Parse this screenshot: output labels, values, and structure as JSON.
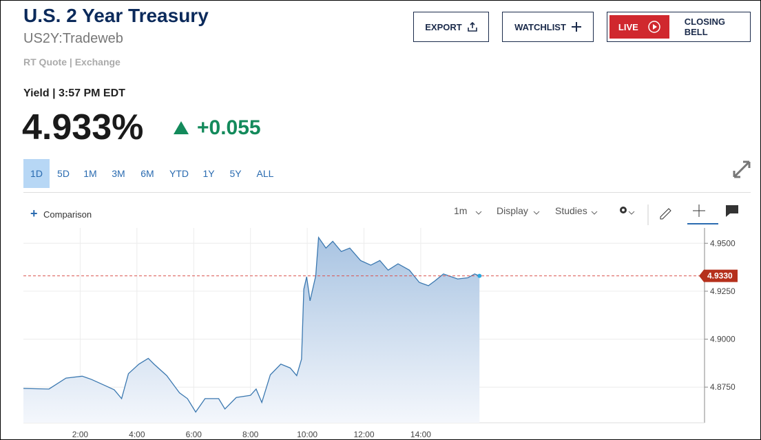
{
  "header": {
    "title": "U.S. 2 Year Treasury",
    "symbol": "US2Y:Tradeweb",
    "source": "RT Quote | Exchange",
    "time": "Yield | 3:57 PM EDT",
    "price": "4.933%",
    "change": "+0.055"
  },
  "buttons": {
    "export": "EXPORT",
    "watchlist": "WATCHLIST",
    "live": "LIVE",
    "closing_bell": "CLOSING BELL"
  },
  "ranges": [
    "1D",
    "5D",
    "1M",
    "3M",
    "6M",
    "YTD",
    "1Y",
    "5Y",
    "ALL"
  ],
  "toolbar": {
    "comparison": "Comparison",
    "interval": "1m",
    "display": "Display",
    "studies": "Studies"
  },
  "chart_data": {
    "type": "line",
    "color": "#3b78b0",
    "x": [
      0,
      0.9,
      1.5,
      2.07,
      2.4,
      2.85,
      3.2,
      3.46,
      3.7,
      4.07,
      4.4,
      4.6,
      5.05,
      5.5,
      5.78,
      6.07,
      6.4,
      6.88,
      7.1,
      7.5,
      8.0,
      8.2,
      8.4,
      8.7,
      9.07,
      9.4,
      9.63,
      9.8,
      9.88,
      9.98,
      10.1,
      10.3,
      10.4,
      10.66,
      10.9,
      11.2,
      11.5,
      11.88,
      12.24,
      12.56,
      12.85,
      13.2,
      13.6,
      13.95,
      14.27,
      14.5,
      14.8,
      15.3,
      15.66,
      15.9,
      16.07
    ],
    "y": [
      4.8743,
      4.874,
      4.8797,
      4.8807,
      4.879,
      4.876,
      4.8736,
      4.869,
      4.882,
      4.887,
      4.89,
      4.887,
      4.881,
      4.872,
      4.869,
      4.862,
      4.869,
      4.869,
      4.8636,
      4.8696,
      4.8707,
      4.874,
      4.867,
      4.8814,
      4.887,
      4.885,
      4.881,
      4.8896,
      4.926,
      4.9325,
      4.92,
      4.933,
      4.953,
      4.9475,
      4.951,
      4.9457,
      4.9475,
      4.941,
      4.9386,
      4.941,
      4.936,
      4.9393,
      4.936,
      4.9296,
      4.9279,
      4.9304,
      4.934,
      4.9314,
      4.932,
      4.934,
      4.933
    ],
    "xlim": [
      0,
      24
    ],
    "xticks": [
      {
        "value": 2,
        "label": "2:00"
      },
      {
        "value": 4,
        "label": "4:00"
      },
      {
        "value": 6,
        "label": "6:00"
      },
      {
        "value": 8,
        "label": "8:00"
      },
      {
        "value": 10,
        "label": "10:00"
      },
      {
        "value": 12,
        "label": "12:00"
      },
      {
        "value": 14,
        "label": "14:00"
      }
    ],
    "ylim": [
      4.8564,
      4.958
    ],
    "yticks": [
      {
        "value": 4.875,
        "label": "4.8750"
      },
      {
        "value": 4.9,
        "label": "4.9000"
      },
      {
        "value": 4.925,
        "label": "4.9250"
      },
      {
        "value": 4.95,
        "label": "4.9500"
      }
    ],
    "last_value": {
      "value": 4.933,
      "label": "4.9330"
    },
    "grid": true
  }
}
